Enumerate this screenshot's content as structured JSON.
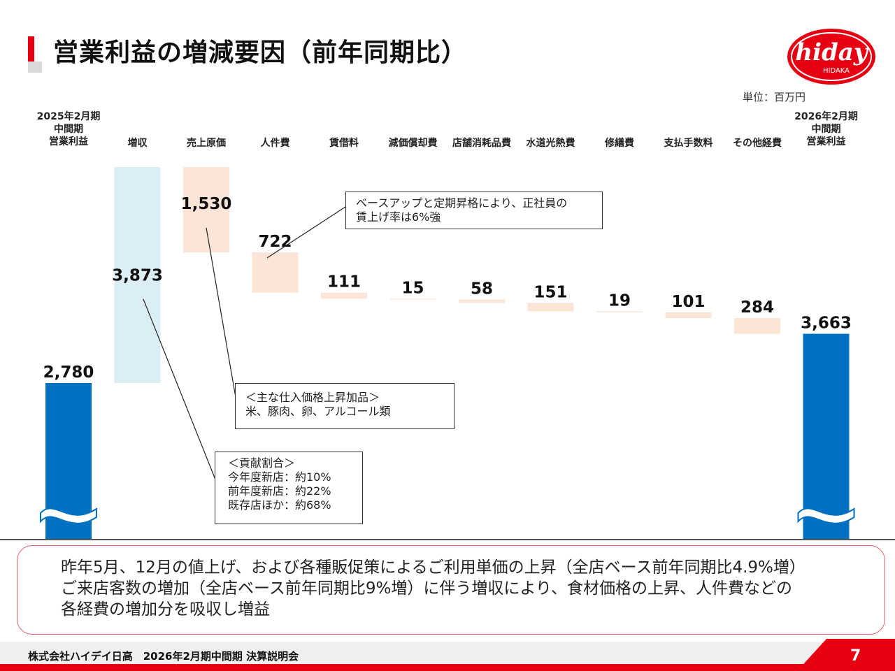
{
  "title": "営業利益の増減要因（前年同期比）",
  "logo": {
    "brand": "hiday",
    "sub": "HIDAKA"
  },
  "unit": "単位：百万円",
  "chart_data": {
    "type": "waterfall",
    "columns": [
      {
        "label_lines": [
          "2025年2月期",
          "中間期",
          "営業利益"
        ],
        "value": 2780,
        "kind": "total",
        "display": "2,780"
      },
      {
        "label_lines": [
          "増収"
        ],
        "value": 3873,
        "kind": "increase",
        "display": "3,873"
      },
      {
        "label_lines": [
          "売上原価"
        ],
        "value": 1530,
        "kind": "decrease",
        "display": "1,530"
      },
      {
        "label_lines": [
          "人件費"
        ],
        "value": 722,
        "kind": "decrease",
        "display": "722"
      },
      {
        "label_lines": [
          "賃借料"
        ],
        "value": 111,
        "kind": "decrease",
        "display": "111"
      },
      {
        "label_lines": [
          "減価償却費"
        ],
        "value": 15,
        "kind": "decrease",
        "display": "15"
      },
      {
        "label_lines": [
          "店舗消耗品費"
        ],
        "value": 58,
        "kind": "decrease",
        "display": "58"
      },
      {
        "label_lines": [
          "水道光熱費"
        ],
        "value": 151,
        "kind": "decrease",
        "display": "151"
      },
      {
        "label_lines": [
          "修繕費"
        ],
        "value": 19,
        "kind": "decrease",
        "display": "19"
      },
      {
        "label_lines": [
          "支払手数料"
        ],
        "value": 101,
        "kind": "decrease",
        "display": "101"
      },
      {
        "label_lines": [
          "その他経費"
        ],
        "value": 284,
        "kind": "decrease",
        "display": "284"
      },
      {
        "label_lines": [
          "2026年2月期",
          "中間期",
          "営業利益"
        ],
        "value": 3663,
        "kind": "total",
        "display": "3,663"
      }
    ],
    "axis_break": true,
    "colors": {
      "total": "#0070c0",
      "increase": "#daeef3",
      "decrease": "#fbe5d6"
    }
  },
  "callouts": {
    "wage": [
      "ベースアップと定期昇格により、正社員の",
      "賃上げ率は6%強"
    ],
    "cost": [
      "＜主な仕入価格上昇加品＞",
      "米、豚肉、卵、アルコール類"
    ],
    "contrib": [
      "＜貢献割合＞",
      "今年度新店：約10%",
      "前年度新店：約22%",
      "既存店ほか：約68%"
    ]
  },
  "summary": [
    "昨年5月、12月の値上げ、および各種販促策によるご利用単価の上昇（全店ベース前年同期比4.9%増）",
    "ご来店客数の増加（全店ベース前年同期比9%増）に伴う増収により、食材価格の上昇、人件費などの",
    "各経費の増加分を吸収し増益"
  ],
  "footer": {
    "company": "株式会社ハイデイ日高　2026年2月期中間期  決算説明会",
    "page": "7"
  }
}
